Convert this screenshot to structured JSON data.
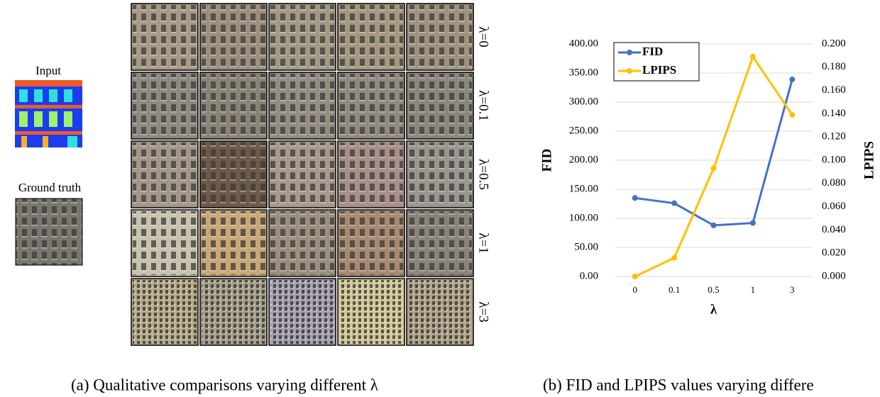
{
  "panel_a": {
    "input_label": "Input",
    "ground_truth_label": "Ground truth",
    "row_labels": [
      "λ=0",
      "λ=0.1",
      "λ=0.5",
      "λ=1",
      "λ=3"
    ],
    "caption": "(a) Qualitative comparisons varying different λ"
  },
  "panel_b_caption": "(b) FID and LPIPS values varying differe",
  "chart_data": {
    "type": "line",
    "x_label": "λ",
    "y_label": "FID",
    "y2_label": "LPIPS",
    "categories": [
      "0",
      "0.1",
      "0.5",
      "1",
      "3"
    ],
    "series": [
      {
        "name": "FID",
        "color": "#4472c4",
        "values": [
          135,
          126,
          88,
          92,
          339
        ]
      },
      {
        "name": "LPIPS",
        "color": "#ffc000",
        "axis": "y2",
        "values": [
          0.0,
          0.016,
          0.093,
          0.189,
          0.139
        ]
      }
    ],
    "ylim": [
      0,
      400
    ],
    "yticks": [
      {
        "value": 0,
        "label": "0.00"
      },
      {
        "value": 50,
        "label": "50.00"
      },
      {
        "value": 100,
        "label": "100.00"
      },
      {
        "value": 150,
        "label": "150.00"
      },
      {
        "value": 200,
        "label": "200.00"
      },
      {
        "value": 250,
        "label": "250.00"
      },
      {
        "value": 300,
        "label": "300.00"
      },
      {
        "value": 350,
        "label": "350.00"
      },
      {
        "value": 400,
        "label": "400.00"
      }
    ],
    "y2lim": [
      0,
      0.2
    ],
    "y2ticks": [
      {
        "value": 0,
        "label": "0.000"
      },
      {
        "value": 0.02,
        "label": "0.020"
      },
      {
        "value": 0.04,
        "label": "0.040"
      },
      {
        "value": 0.06,
        "label": "0.060"
      },
      {
        "value": 0.08,
        "label": "0.080"
      },
      {
        "value": 0.1,
        "label": "0.100"
      },
      {
        "value": 0.12,
        "label": "0.120"
      },
      {
        "value": 0.14,
        "label": "0.140"
      },
      {
        "value": 0.16,
        "label": "0.160"
      },
      {
        "value": 0.18,
        "label": "0.180"
      },
      {
        "value": 0.2,
        "label": "0.200"
      }
    ],
    "grid": true,
    "legend": "upper left"
  }
}
